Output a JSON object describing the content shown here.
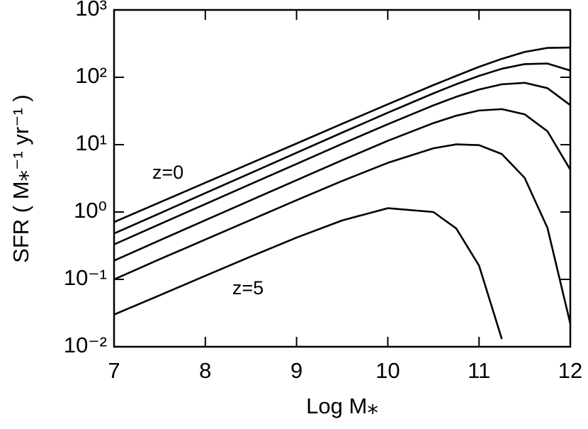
{
  "chart_data": {
    "type": "line",
    "xlabel": "Log M⁎",
    "ylabel": "SFR ( M⁎⁻¹ yr⁻¹ )",
    "annotations": [
      "z=0",
      "z=5"
    ],
    "x": [
      7,
      7.5,
      8,
      8.5,
      9,
      9.5,
      10,
      10.5,
      10.75,
      11,
      11.25,
      11.5,
      11.75,
      12
    ],
    "series": [
      {
        "color": "#000000",
        "values": [
          0.71,
          1.39,
          2.72,
          5.32,
          10.4,
          20.4,
          39.8,
          76.6,
          105,
          143,
          188,
          238,
          273,
          276
        ]
      },
      {
        "color": "#000000",
        "values": [
          0.48,
          0.955,
          1.91,
          3.8,
          7.58,
          15.1,
          29.8,
          57.8,
          78.9,
          105,
          134,
          157,
          160,
          126
        ]
      },
      {
        "color": "#000000",
        "values": [
          0.33,
          0.66,
          1.31,
          2.61,
          5.18,
          10.3,
          20.1,
          38.3,
          51.3,
          65.9,
          78.7,
          82.8,
          69,
          38.6
        ]
      },
      {
        "color": "#000000",
        "values": [
          0.19,
          0.38,
          0.755,
          1.5,
          2.97,
          5.87,
          11.4,
          20.9,
          26.9,
          32.1,
          33.7,
          28.2,
          15.8,
          4.25
        ]
      },
      {
        "color": "#000000",
        "values": [
          0.1,
          0.199,
          0.39,
          0.765,
          1.5,
          2.89,
          5.37,
          8.83,
          10.1,
          9.84,
          7.25,
          3.21,
          0.58,
          0.022
        ]
      },
      {
        "color": "#000000",
        "values": [
          0.03,
          0.058,
          0.113,
          0.219,
          0.417,
          0.75,
          1.14,
          1.0,
          0.57,
          0.16,
          0.013,
          null,
          null,
          null
        ]
      }
    ],
    "xlim": [
      7,
      12
    ],
    "xticks": [
      7,
      8,
      9,
      10,
      11,
      12
    ],
    "ylim": [
      0.01,
      1000
    ],
    "ylog": true,
    "yticks": [
      {
        "value": 0.01,
        "label": "10⁻²"
      },
      {
        "value": 0.1,
        "label": "10⁻¹"
      },
      {
        "value": 1,
        "label": "10⁰"
      },
      {
        "value": 10,
        "label": "10¹"
      },
      {
        "value": 100,
        "label": "10²"
      },
      {
        "value": 1000,
        "label": "10³"
      }
    ],
    "grid": false
  }
}
